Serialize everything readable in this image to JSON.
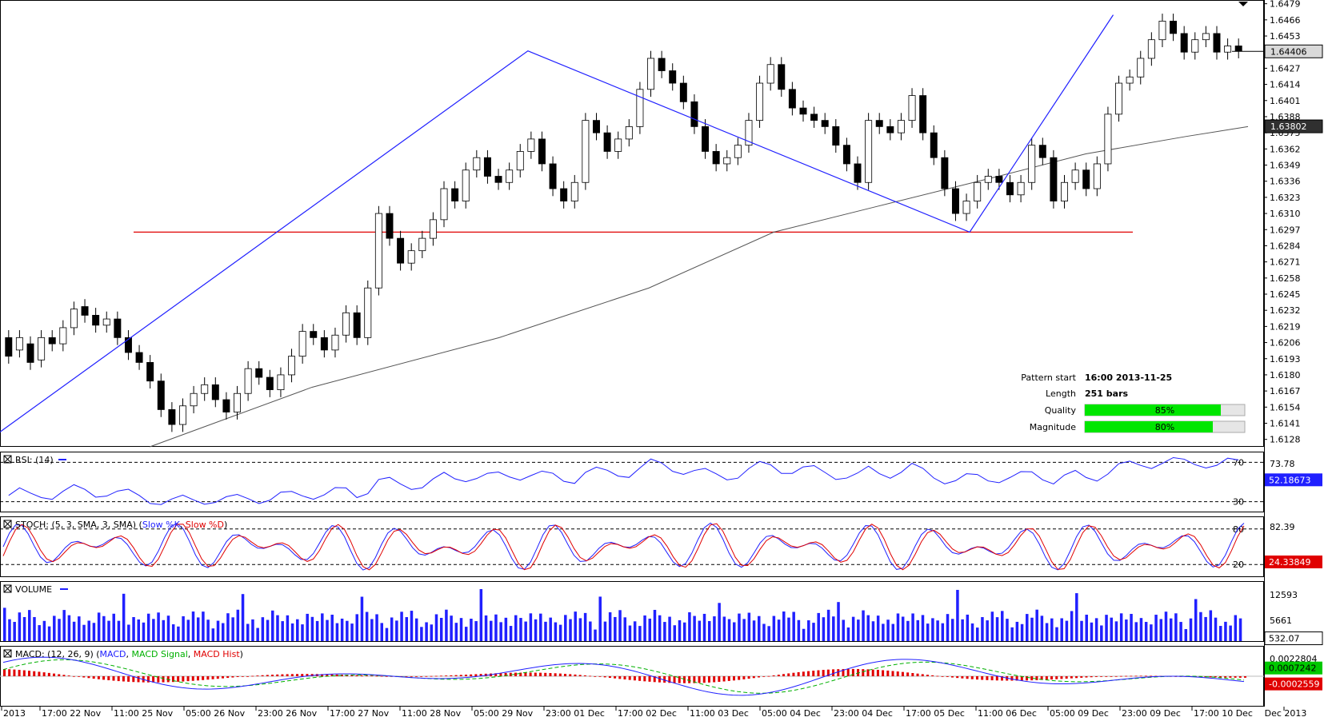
{
  "chart_data": [
    {
      "type": "candlestick",
      "panel": "price",
      "y_ticks": [
        "1.6479",
        "1.6466",
        "1.6453",
        "1.6440",
        "1.6427",
        "1.6414",
        "1.6401",
        "1.6388",
        "1.6375",
        "1.6362",
        "1.6349",
        "1.6336",
        "1.6323",
        "1.6310",
        "1.6297",
        "1.6284",
        "1.6271",
        "1.6258",
        "1.6245",
        "1.6232",
        "1.6219",
        "1.6206",
        "1.6193",
        "1.6180",
        "1.6167",
        "1.6154",
        "1.6141",
        "1.6128"
      ],
      "ylim": [
        1.6122,
        1.6482
      ],
      "current_price_label": "1.64406",
      "current_price": 1.64406,
      "ma_label": "1.63802",
      "ma_value": 1.63802,
      "support_level": 1.6295,
      "pattern_lines": [
        {
          "x": 0.0,
          "y": 1.6134
        },
        {
          "x": 0.423,
          "y": 1.6441
        },
        {
          "x": 0.777,
          "y": 1.6295
        },
        {
          "x": 0.892,
          "y": 1.647
        }
      ],
      "ma_path": [
        {
          "x": 0.12,
          "y": 1.6122
        },
        {
          "x": 0.25,
          "y": 1.617
        },
        {
          "x": 0.4,
          "y": 1.621
        },
        {
          "x": 0.52,
          "y": 1.625
        },
        {
          "x": 0.62,
          "y": 1.6295
        },
        {
          "x": 0.7,
          "y": 1.6315
        },
        {
          "x": 0.8,
          "y": 1.634
        },
        {
          "x": 0.87,
          "y": 1.6358
        },
        {
          "x": 0.95,
          "y": 1.6372
        },
        {
          "x": 1.0,
          "y": 1.638
        }
      ],
      "candles": [
        [
          1.621,
          1.6195
        ],
        [
          1.62,
          1.621
        ],
        [
          1.6205,
          1.619
        ],
        [
          1.6192,
          1.621
        ],
        [
          1.621,
          1.6205
        ],
        [
          1.6205,
          1.6218
        ],
        [
          1.6218,
          1.6233
        ],
        [
          1.6235,
          1.6228
        ],
        [
          1.6228,
          1.622
        ],
        [
          1.622,
          1.6225
        ],
        [
          1.6225,
          1.621
        ],
        [
          1.621,
          1.6198
        ],
        [
          1.6198,
          1.619
        ],
        [
          1.619,
          1.6175
        ],
        [
          1.6175,
          1.6152
        ],
        [
          1.6152,
          1.614
        ],
        [
          1.614,
          1.6155
        ],
        [
          1.6155,
          1.6165
        ],
        [
          1.6165,
          1.6172
        ],
        [
          1.6172,
          1.616
        ],
        [
          1.616,
          1.615
        ],
        [
          1.615,
          1.6165
        ],
        [
          1.6165,
          1.6185
        ],
        [
          1.6185,
          1.6178
        ],
        [
          1.6178,
          1.6168
        ],
        [
          1.6168,
          1.618
        ],
        [
          1.618,
          1.6195
        ],
        [
          1.6195,
          1.6215
        ],
        [
          1.6215,
          1.621
        ],
        [
          1.621,
          1.62
        ],
        [
          1.62,
          1.6212
        ],
        [
          1.6212,
          1.623
        ],
        [
          1.623,
          1.621
        ],
        [
          1.621,
          1.625
        ],
        [
          1.625,
          1.631
        ],
        [
          1.631,
          1.629
        ],
        [
          1.629,
          1.627
        ],
        [
          1.627,
          1.628
        ],
        [
          1.628,
          1.629
        ],
        [
          1.629,
          1.6305
        ],
        [
          1.6305,
          1.633
        ],
        [
          1.633,
          1.632
        ],
        [
          1.632,
          1.6345
        ],
        [
          1.6345,
          1.6355
        ],
        [
          1.6355,
          1.634
        ],
        [
          1.634,
          1.6335
        ],
        [
          1.6335,
          1.6345
        ],
        [
          1.6345,
          1.636
        ],
        [
          1.636,
          1.637
        ],
        [
          1.637,
          1.635
        ],
        [
          1.635,
          1.633
        ],
        [
          1.633,
          1.632
        ],
        [
          1.632,
          1.6335
        ],
        [
          1.6335,
          1.6385
        ],
        [
          1.6385,
          1.6375
        ],
        [
          1.6375,
          1.636
        ],
        [
          1.636,
          1.637
        ],
        [
          1.637,
          1.638
        ],
        [
          1.638,
          1.641
        ],
        [
          1.641,
          1.6435
        ],
        [
          1.6435,
          1.6425
        ],
        [
          1.6425,
          1.6415
        ],
        [
          1.6415,
          1.64
        ],
        [
          1.64,
          1.638
        ],
        [
          1.638,
          1.636
        ],
        [
          1.636,
          1.635
        ],
        [
          1.635,
          1.6355
        ],
        [
          1.6355,
          1.6365
        ],
        [
          1.6365,
          1.6385
        ],
        [
          1.6385,
          1.6415
        ],
        [
          1.6415,
          1.643
        ],
        [
          1.643,
          1.641
        ],
        [
          1.641,
          1.6395
        ],
        [
          1.6395,
          1.639
        ],
        [
          1.639,
          1.6385
        ],
        [
          1.6385,
          1.638
        ],
        [
          1.638,
          1.6365
        ],
        [
          1.6365,
          1.635
        ],
        [
          1.635,
          1.6335
        ],
        [
          1.6335,
          1.6385
        ],
        [
          1.6385,
          1.638
        ],
        [
          1.638,
          1.6375
        ],
        [
          1.6375,
          1.6385
        ],
        [
          1.6385,
          1.6405
        ],
        [
          1.6405,
          1.6375
        ],
        [
          1.6375,
          1.6355
        ],
        [
          1.6355,
          1.633
        ],
        [
          1.633,
          1.631
        ],
        [
          1.631,
          1.632
        ],
        [
          1.632,
          1.6335
        ],
        [
          1.6335,
          1.634
        ],
        [
          1.634,
          1.6335
        ],
        [
          1.6335,
          1.6325
        ],
        [
          1.6325,
          1.6335
        ],
        [
          1.6335,
          1.6365
        ],
        [
          1.6365,
          1.6355
        ],
        [
          1.6355,
          1.632
        ],
        [
          1.632,
          1.6335
        ],
        [
          1.6335,
          1.6345
        ],
        [
          1.6345,
          1.633
        ],
        [
          1.633,
          1.635
        ],
        [
          1.635,
          1.639
        ],
        [
          1.639,
          1.6415
        ],
        [
          1.6415,
          1.642
        ],
        [
          1.642,
          1.6435
        ],
        [
          1.6435,
          1.645
        ],
        [
          1.645,
          1.6465
        ],
        [
          1.6465,
          1.6455
        ],
        [
          1.6455,
          1.644
        ],
        [
          1.644,
          1.645
        ],
        [
          1.645,
          1.6455
        ],
        [
          1.6455,
          1.644
        ],
        [
          1.644,
          1.6445
        ],
        [
          1.6445,
          1.6441
        ]
      ],
      "rsi": {
        "label": "RSI: (14)",
        "level_high": "70",
        "level_low": "30",
        "top_tick": "73.78",
        "value_label": "52.18673",
        "value": 52.18673
      },
      "stoch": {
        "label_prefix": "STOCH: (5, 3, SMA, 3, SMA)",
        "series_k": "Slow %K",
        "series_d": "Slow %D",
        "level_high": "80",
        "level_low": "20",
        "top_tick": "82.39",
        "value_label": "24.33849",
        "value": 24.33849
      },
      "volume": {
        "label": "VOLUME",
        "ticks": [
          "12593",
          "5661"
        ],
        "value_label": "532.07",
        "value": 532.07
      },
      "macd": {
        "label_prefix": "MACD: (12, 26, 9)",
        "series": [
          "MACD",
          "MACD Signal",
          "MACD Hist"
        ],
        "top_tick": "0.0022804",
        "value_label_1": "0.0007242",
        "value_1": 0.0007242,
        "value_label_2": "-0.0002559",
        "value_2": -0.0002559
      },
      "x_labels": [
        "2013",
        "17:00 22 Nov",
        "11:00 25 Nov",
        "05:00 26 Nov",
        "23:00 26 Nov",
        "17:00 27 Nov",
        "11:00 28 Nov",
        "05:00 29 Nov",
        "23:00 01 Dec",
        "17:00 02 Dec",
        "11:00 03 Dec",
        "05:00 04 Dec",
        "23:00 04 Dec",
        "17:00 05 Dec",
        "11:00 06 Dec",
        "05:00 09 Dec",
        "23:00 09 Dec",
        "17:00 10 Dec",
        "Dec 2013"
      ]
    }
  ],
  "info": {
    "pattern_start_label": "Pattern start",
    "pattern_start_value": "16:00 2013-11-25",
    "length_label": "Length",
    "length_value": "251 bars",
    "quality_label": "Quality",
    "quality_text": "85%",
    "quality_value": 0.85,
    "magnitude_label": "Magnitude",
    "magnitude_text": "80%",
    "magnitude_value": 0.8
  }
}
